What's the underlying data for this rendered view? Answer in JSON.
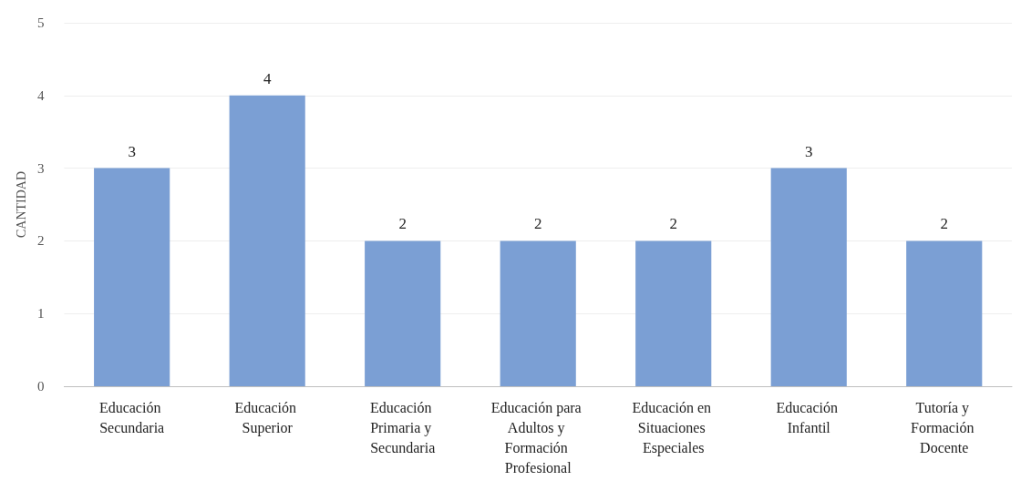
{
  "chart_data": {
    "type": "bar",
    "ylabel": "CANTIDAD",
    "categories": [
      "Educación Secundaria",
      "Educación Superior",
      "Educación Primaria y Secundaria",
      "Educación para Adultos y Formación Profesional",
      "Educación en Situaciones Especiales",
      "Educación Infantil",
      "Tutoría y Formación Docente"
    ],
    "values": [
      3,
      4,
      2,
      2,
      2,
      3,
      2
    ],
    "color": "#7b9fd4",
    "ylim": [
      0,
      5
    ],
    "yticks": [
      0,
      1,
      2,
      3,
      4,
      5
    ],
    "grid": "y",
    "data_labels": true
  }
}
